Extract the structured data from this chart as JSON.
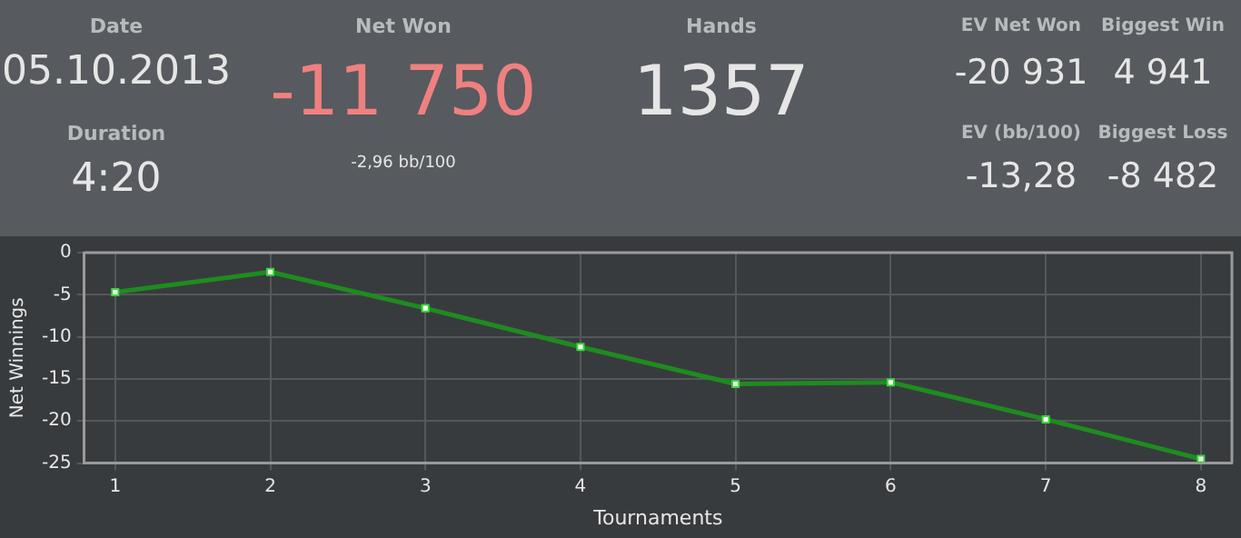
{
  "chart_data": [
    {
      "type": "other",
      "annotations": [
        "Date",
        "05.10.2013",
        "Duration",
        "4:20",
        "Net Won",
        "-11 750",
        "-2,96 bb/100",
        "Hands",
        "1357",
        "EV Net Won",
        "-20 931",
        "Biggest Win",
        "4 941",
        "EV (bb/100)",
        "-13,28",
        "Biggest Loss",
        "-8 482"
      ]
    },
    {
      "type": "line",
      "xlabel": "Tournaments",
      "ylabel": "Net Winnings",
      "x": [
        1,
        2,
        3,
        4,
        5,
        6,
        7,
        8
      ],
      "series": [
        {
          "color": "#1e8c1e",
          "values": [
            -4.7,
            -2.3,
            -6.6,
            -11.2,
            -15.6,
            -15.4,
            -19.8,
            -24.5
          ]
        }
      ],
      "xlim": [
        0.8,
        8.2
      ],
      "xticks": [
        1,
        2,
        3,
        4,
        5,
        6,
        7,
        8
      ],
      "ylim": [
        -25,
        0
      ],
      "yticks": [
        -25,
        -20,
        -15,
        -10,
        -5,
        0
      ],
      "grid": true,
      "legend": false,
      "marker": "square",
      "line_style": "solid"
    }
  ]
}
